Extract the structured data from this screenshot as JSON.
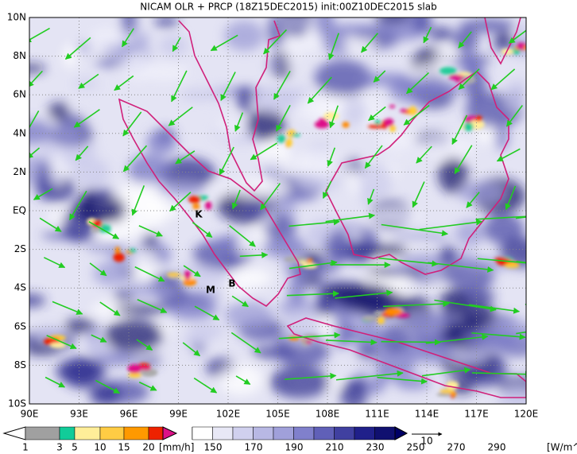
{
  "title": "NICAM OLR + PRCP (18Z15DEC2015) init:00Z10DEC2015 slab",
  "map": {
    "lat_labels": [
      "10N",
      "8N",
      "6N",
      "4N",
      "2N",
      "EQ",
      "2S",
      "4S",
      "6S",
      "8S",
      "10S"
    ],
    "lon_labels": [
      "90E",
      "93E",
      "96E",
      "99E",
      "102E",
      "105E",
      "108E",
      "111E",
      "114E",
      "117E",
      "120E"
    ],
    "markers": [
      "K",
      "M",
      "B"
    ]
  },
  "legend_precip": {
    "labels": [
      "1",
      "3",
      "5",
      "10",
      "15",
      "20"
    ],
    "unit": "[mm/h]"
  },
  "legend_olr": {
    "labels": [
      "150",
      "170",
      "190",
      "210",
      "230",
      "250",
      "270",
      "290"
    ],
    "unit": "[W/m^2]",
    "vector_ref": "10"
  }
}
